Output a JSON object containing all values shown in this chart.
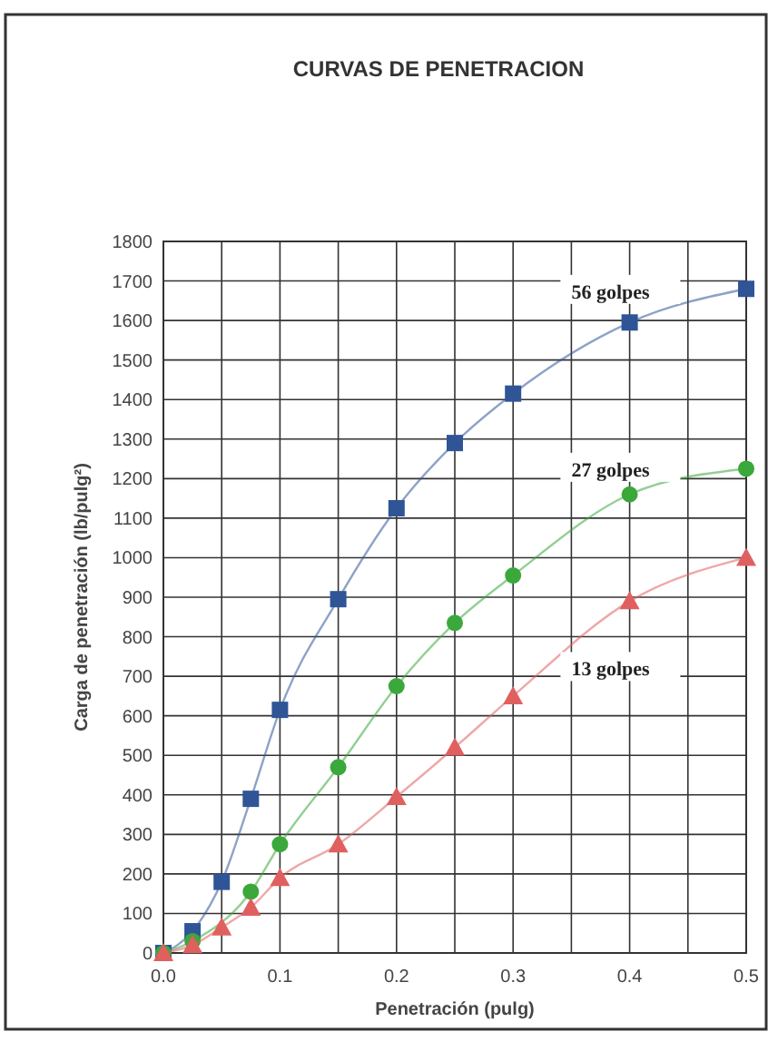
{
  "chart_data": {
    "type": "line",
    "title": "CURVAS DE PENETRACION",
    "xlabel": "Penetración (pulg)",
    "ylabel": "Carga de penetración (lb/pulg²)",
    "x": [
      0,
      0.025,
      0.05,
      0.075,
      0.1,
      0.15,
      0.2,
      0.25,
      0.3,
      0.4,
      0.5
    ],
    "series": [
      {
        "name": "56 golpes",
        "color": "#2f5597",
        "marker": "square",
        "values": [
          0,
          55,
          180,
          390,
          615,
          895,
          1125,
          1290,
          1415,
          1595,
          1680
        ]
      },
      {
        "name": "27 golpes",
        "color": "#3aa83a",
        "marker": "circle",
        "values": [
          0,
          30,
          null,
          155,
          275,
          470,
          675,
          835,
          955,
          1160,
          1225
        ]
      },
      {
        "name": "13 golpes",
        "color": "#e06060",
        "marker": "triangle",
        "values": [
          0,
          20,
          65,
          115,
          190,
          275,
          395,
          520,
          650,
          890,
          1000
        ]
      }
    ],
    "xlim": [
      0,
      0.5
    ],
    "ylim": [
      0,
      1800
    ],
    "xticks": [
      {
        "value": 0,
        "label": "0.0"
      },
      {
        "value": 0.05,
        "label": null
      },
      0.1,
      {
        "value": 0.15,
        "label": null
      },
      0.2,
      {
        "value": 0.25,
        "label": null
      },
      0.3,
      {
        "value": 0.35,
        "label": null
      },
      0.4,
      {
        "value": 0.45,
        "label": null
      },
      0.5
    ],
    "yticks": [
      0,
      100,
      200,
      300,
      400,
      500,
      600,
      700,
      800,
      900,
      1000,
      1100,
      1200,
      1300,
      1400,
      1500,
      1600,
      1700,
      1800
    ],
    "grid": true,
    "line_style": "solid"
  }
}
